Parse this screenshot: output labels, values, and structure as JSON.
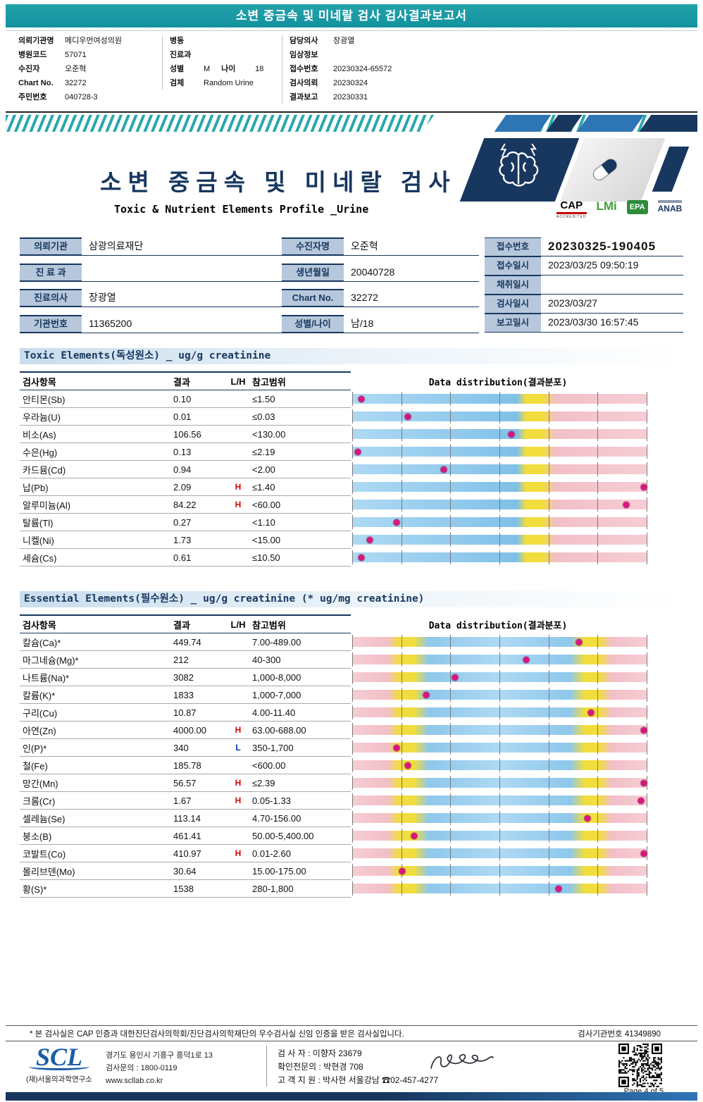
{
  "colors": {
    "teal_header": "#1797A3",
    "navy": "#17375E",
    "accent_blue": "#2E75B6",
    "label_bg": "#B7C8DC",
    "marker_pink": "#D6187E",
    "flag_high": "#D80000",
    "flag_low": "#0030C0",
    "bar_blue": "#8EC8EC",
    "bar_yellow": "#F1DD3D",
    "bar_pink": "#F2BFC8"
  },
  "icons": [
    "brain-icon",
    "lightning-icon",
    "pill-icon",
    "qr-code",
    "signature-scribble"
  ],
  "top_bar": {
    "title": "소변 중금속 및 미네랄 검사 검사결과보고서"
  },
  "patient_header": {
    "columns": [
      {
        "rows": [
          {
            "label": "의뢰기관명",
            "value": "메디우먼여성의원"
          },
          {
            "label": "병원코드",
            "value": "57071"
          },
          {
            "label": "수진자",
            "value": "오준혁"
          },
          {
            "label": "Chart No.",
            "value": "32272"
          },
          {
            "label": "주민번호",
            "value": "040728-3"
          }
        ]
      },
      {
        "rows": [
          {
            "label": "병동",
            "value": ""
          },
          {
            "label": "진료과",
            "value": ""
          },
          {
            "label": "성별",
            "value": "M",
            "label2": "나이",
            "value2": "18"
          },
          {
            "label": "검체",
            "value": "Random Urine"
          }
        ]
      },
      {
        "rows": [
          {
            "label": "담당의사",
            "value": "장광열"
          },
          {
            "label": "임상정보",
            "value": ""
          },
          {
            "label": "접수번호",
            "value": "20230324-65572"
          },
          {
            "label": "검사의뢰",
            "value": "20230324"
          },
          {
            "label": "결과보고",
            "value": "20230331"
          }
        ]
      }
    ]
  },
  "title_block": {
    "title": "소변 중금속 및 미네랄 검사",
    "subtitle": "Toxic & Nutrient Elements Profile _Urine",
    "certs": [
      {
        "name": "CAP",
        "sub": "ACCREDITED"
      },
      {
        "name": "LMi",
        "sub": ""
      },
      {
        "name": "EPA",
        "sub": ""
      },
      {
        "name": "ANAB",
        "sub": ""
      }
    ]
  },
  "info_table": {
    "groups": [
      {
        "rows": [
          {
            "label": "의뢰기관",
            "value": "삼광의료재단"
          },
          {
            "label": "진 료 과",
            "value": ""
          },
          {
            "label": "진료의사",
            "value": "장광열"
          },
          {
            "label": "기관번호",
            "value": "11365200"
          }
        ]
      },
      {
        "rows": [
          {
            "label": "수진자명",
            "value": "오준혁"
          },
          {
            "label": "생년월일",
            "value": "20040728"
          },
          {
            "label": "Chart No.",
            "value": "32272"
          },
          {
            "label": "성별/나이",
            "value": "남/18"
          }
        ]
      },
      {
        "tight": true,
        "rows": [
          {
            "label": "접수번호",
            "value": "20230325-190405",
            "big": true
          },
          {
            "label": "접수일시",
            "value": "2023/03/25 09:50:19"
          },
          {
            "label": "채취일시",
            "value": ""
          },
          {
            "label": "검사일시",
            "value": "2023/03/27"
          },
          {
            "label": "보고일시",
            "value": "2023/03/30 16:57:45"
          }
        ]
      }
    ]
  },
  "toxic": {
    "title": "Toxic Elements(독성원소) _ ug/g creatinine",
    "headers": {
      "item": "검사항목",
      "result": "결과",
      "lh": "L/H",
      "range": "참고범위",
      "dist": "Data distribution(결과분포)"
    },
    "rows": [
      {
        "item": "안티몬(Sb)",
        "result": "0.10",
        "lh": "",
        "range": "≤1.50",
        "marker": 3
      },
      {
        "item": "우라늄(U)",
        "result": "0.01",
        "lh": "",
        "range": "≤0.03",
        "marker": 19
      },
      {
        "item": "비소(As)",
        "result": "106.56",
        "lh": "",
        "range": "<130.00",
        "marker": 54
      },
      {
        "item": "수은(Hg)",
        "result": "0.13",
        "lh": "",
        "range": "≤2.19",
        "marker": 2
      },
      {
        "item": "카드뮴(Cd)",
        "result": "0.94",
        "lh": "",
        "range": "<2.00",
        "marker": 31
      },
      {
        "item": "납(Pb)",
        "result": "2.09",
        "lh": "H",
        "range": "≤1.40",
        "marker": 99
      },
      {
        "item": "알루미늄(Al)",
        "result": "84.22",
        "lh": "H",
        "range": "<60.00",
        "marker": 93
      },
      {
        "item": "탈륨(Tl)",
        "result": "0.27",
        "lh": "",
        "range": "<1.10",
        "marker": 15
      },
      {
        "item": "니켈(Ni)",
        "result": "1.73",
        "lh": "",
        "range": "<15.00",
        "marker": 6
      },
      {
        "item": "세슘(Cs)",
        "result": "0.61",
        "lh": "",
        "range": "≤10.50",
        "marker": 3
      }
    ]
  },
  "essential": {
    "title": "Essential Elements(필수원소) _ ug/g creatinine (* ug/mg creatinine)",
    "headers": {
      "item": "검사항목",
      "result": "결과",
      "lh": "L/H",
      "range": "참고범위",
      "dist": "Data distribution(결과분포)"
    },
    "rows": [
      {
        "item": "칼슘(Ca)*",
        "result": "449.74",
        "lh": "",
        "range": "7.00-489.00",
        "marker": 77
      },
      {
        "item": "마그네슘(Mg)*",
        "result": "212",
        "lh": "",
        "range": "40-300",
        "marker": 59
      },
      {
        "item": "나트륨(Na)*",
        "result": "3082",
        "lh": "",
        "range": "1,000-8,000",
        "marker": 35
      },
      {
        "item": "칼륨(K)*",
        "result": "1833",
        "lh": "",
        "range": "1,000-7,000",
        "marker": 25
      },
      {
        "item": "구리(Cu)",
        "result": "10.87",
        "lh": "",
        "range": "4.00-11.40",
        "marker": 81
      },
      {
        "item": "아연(Zn)",
        "result": "4000.00",
        "lh": "H",
        "range": "63.00-688.00",
        "marker": 99
      },
      {
        "item": "인(P)*",
        "result": "340",
        "lh": "L",
        "range": "350-1,700",
        "marker": 15
      },
      {
        "item": "철(Fe)",
        "result": "185.78",
        "lh": "",
        "range": "<600.00",
        "marker": 19
      },
      {
        "item": "망간(Mn)",
        "result": "56.57",
        "lh": "H",
        "range": "≤2.39",
        "marker": 99
      },
      {
        "item": "크롬(Cr)",
        "result": "1.67",
        "lh": "H",
        "range": "0.05-1.33",
        "marker": 98
      },
      {
        "item": "셀레늄(Se)",
        "result": "113.14",
        "lh": "",
        "range": "4.70-156.00",
        "marker": 80
      },
      {
        "item": "붕소(B)",
        "result": "461.41",
        "lh": "",
        "range": "50.00-5,400.00",
        "marker": 21
      },
      {
        "item": "코발트(Co)",
        "result": "410.97",
        "lh": "H",
        "range": "0.01-2.60",
        "marker": 99
      },
      {
        "item": "몰리브덴(Mo)",
        "result": "30.64",
        "lh": "",
        "range": "15.00-175.00",
        "marker": 17
      },
      {
        "item": "황(S)*",
        "result": "1538",
        "lh": "",
        "range": "280-1,800",
        "marker": 70
      }
    ]
  },
  "footer": {
    "note": "* 본 검사실은 CAP 인증과 대한진단검사의학회/진단검사의학재단의 우수검사실 신임 인증을 받은 검사실입니다.",
    "lab_no_line": "검사기관번호 41349890",
    "logo_text": "SCL",
    "org": "(재)서울의과학연구소",
    "address": "경기도 용인시 기흥구 흥덕1로 13",
    "tel": "검사문의 : 1800-0119",
    "web": "www.scllab.co.kr",
    "examiner": "검 사 자 : 이향자 23679",
    "confirmer": "확인전문의 : 박현경  708",
    "support": "고 객 지 원 : 박사현 서울강남 ☎02-457-4277",
    "page": "Page 4 of 5"
  }
}
